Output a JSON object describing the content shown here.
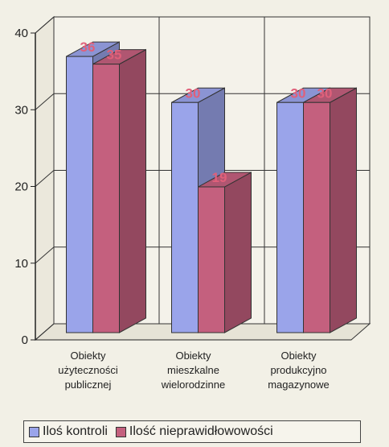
{
  "chart_data": {
    "type": "bar",
    "three_d": true,
    "categories": [
      [
        "Obiekty",
        "użyteczności",
        "publicznej"
      ],
      [
        "Obiekty",
        "mieszkalne",
        "wielorodzinne"
      ],
      [
        "Obiekty",
        "produkcyjno",
        "magazynowe"
      ]
    ],
    "series": [
      {
        "name": "Iloś kontroli",
        "values": [
          36,
          30,
          30
        ],
        "color": "#9aa4ea"
      },
      {
        "name": "Ilość nieprawidłowowości",
        "values": [
          35,
          19,
          30
        ],
        "color": "#c4607e"
      }
    ],
    "ylim": [
      0,
      40
    ],
    "yticks": [
      0,
      10,
      20,
      30,
      40
    ],
    "grid": true,
    "legend": "bottom"
  }
}
